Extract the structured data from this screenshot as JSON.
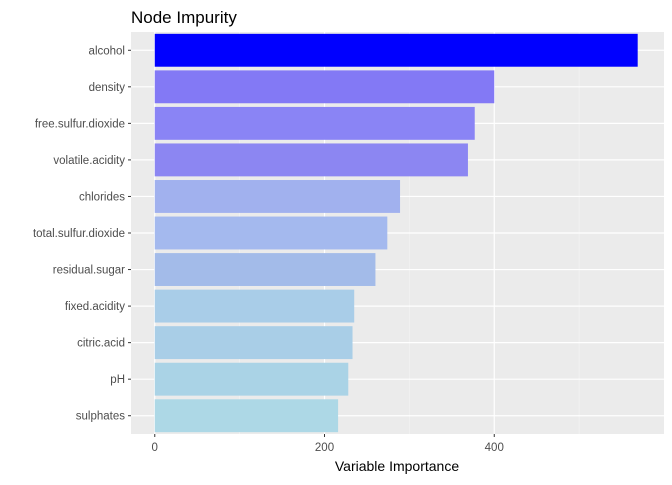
{
  "chart_data": {
    "type": "bar",
    "orientation": "horizontal",
    "title": "Node Impurity",
    "xlabel": "Variable Importance",
    "ylabel": "",
    "xlim": [
      -28,
      600
    ],
    "x_ticks": [
      0,
      200,
      400
    ],
    "x_minor_ticks": [
      100,
      300,
      500
    ],
    "grid": true,
    "legend": "none",
    "categories": [
      "alcohol",
      "density",
      "free.sulfur.dioxide",
      "volatile.acidity",
      "chlorides",
      "total.sulfur.dioxide",
      "residual.sugar",
      "fixed.acidity",
      "citric.acid",
      "pH",
      "sulphates"
    ],
    "values": [
      569,
      400,
      377,
      369,
      289,
      274,
      260,
      235,
      233,
      228,
      216
    ],
    "colors": [
      "#0000ff",
      "#8379f5",
      "#8a84f5",
      "#8c86f2",
      "#a1b1ee",
      "#a4b9ee",
      "#a3bbe9",
      "#a9cde8",
      "#a9cee7",
      "#aad3e6",
      "#add8e6"
    ],
    "panel_background": "#ebebeb",
    "grid_major_color": "#ffffff",
    "text_color": "#4d4d4d"
  }
}
